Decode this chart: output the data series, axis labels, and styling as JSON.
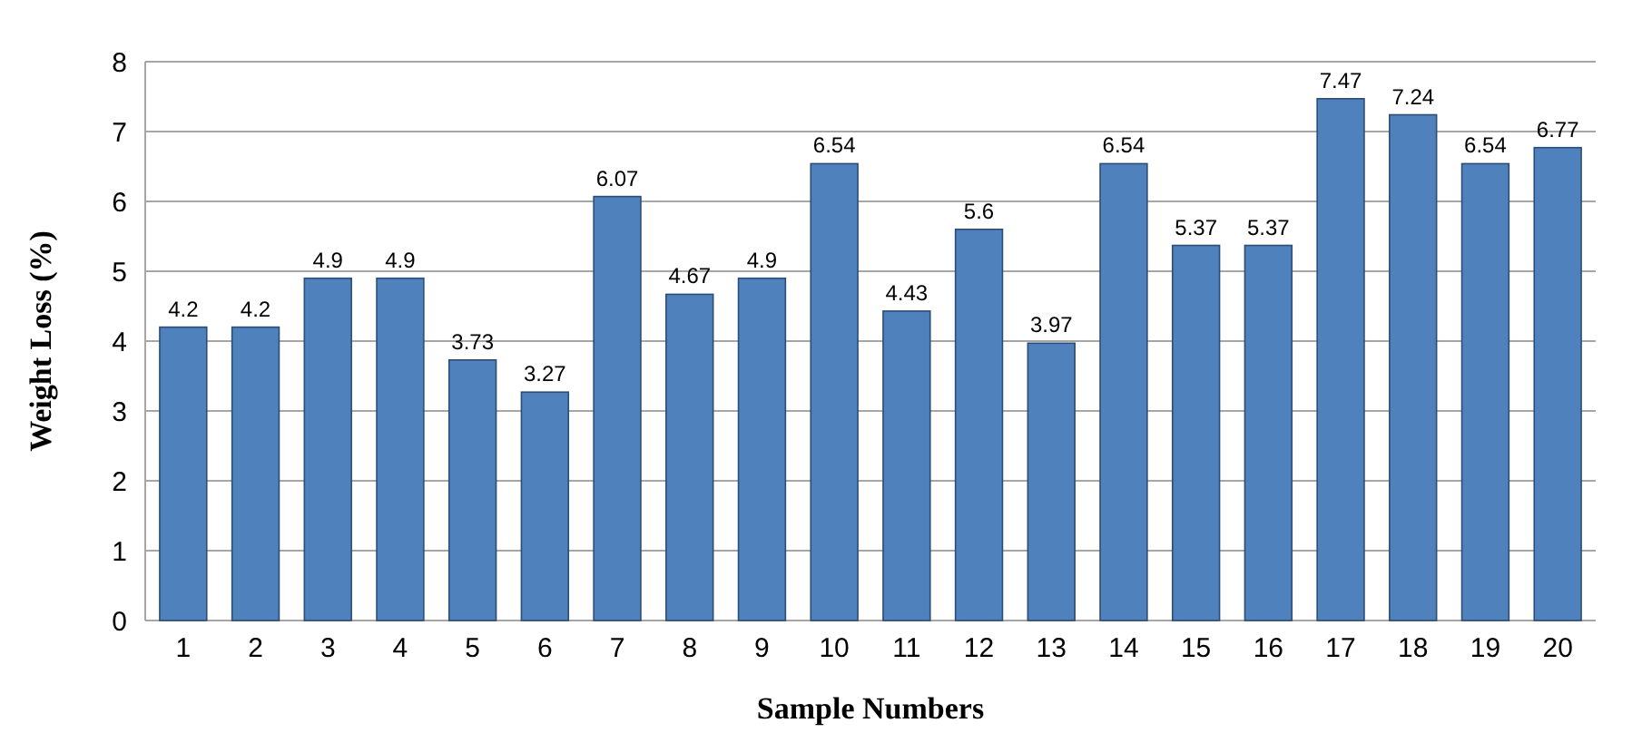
{
  "chart_data": {
    "type": "bar",
    "xlabel": "Sample Numbers",
    "ylabel": "Weight Loss (%)",
    "categories": [
      "1",
      "2",
      "3",
      "4",
      "5",
      "6",
      "7",
      "8",
      "9",
      "10",
      "11",
      "12",
      "13",
      "14",
      "15",
      "16",
      "17",
      "18",
      "19",
      "20"
    ],
    "values": [
      4.2,
      4.2,
      4.9,
      4.9,
      3.73,
      3.27,
      6.07,
      4.67,
      4.9,
      6.54,
      4.43,
      5.6,
      3.97,
      6.54,
      5.37,
      5.37,
      7.47,
      7.24,
      6.54,
      6.77
    ],
    "color": "#4f81bd",
    "ylim": [
      0,
      8
    ],
    "yticks": [
      0,
      1,
      2,
      3,
      4,
      5,
      6,
      7,
      8
    ],
    "grid": "y",
    "data_labels": true
  }
}
